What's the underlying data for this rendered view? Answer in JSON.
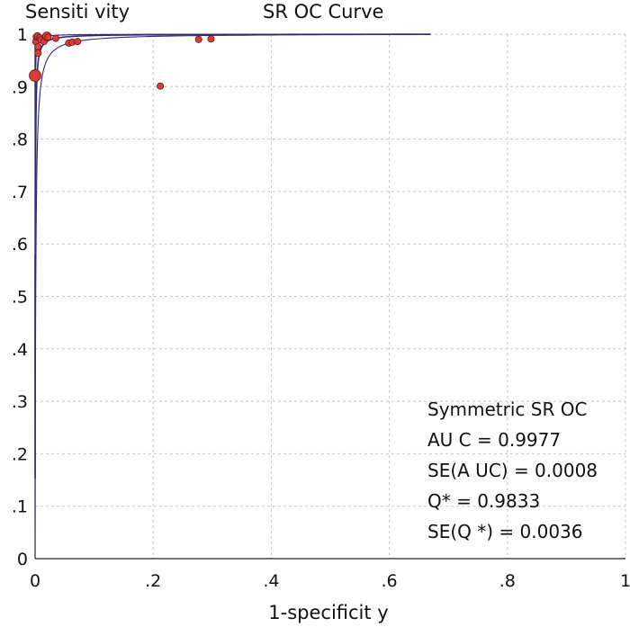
{
  "chart_data": {
    "type": "scatter",
    "title": "SR OC Curve",
    "xlabel": "1-specificit y",
    "ylabel": "Sensiti vity",
    "xlim": [
      0,
      1
    ],
    "ylim": [
      0,
      1
    ],
    "grid": true,
    "x_ticks": [
      {
        "value": 0,
        "label": "0"
      },
      {
        "value": 0.2,
        "label": ".2"
      },
      {
        "value": 0.4,
        "label": ".4"
      },
      {
        "value": 0.6,
        "label": ".6"
      },
      {
        "value": 0.8,
        "label": ".8"
      },
      {
        "value": 1,
        "label": "1"
      }
    ],
    "y_ticks": [
      {
        "value": 0,
        "label": "0"
      },
      {
        "value": 0.1,
        "label": ".1"
      },
      {
        "value": 0.2,
        "label": ".2"
      },
      {
        "value": 0.3,
        "label": ".3"
      },
      {
        "value": 0.4,
        "label": ".4"
      },
      {
        "value": 0.5,
        "label": ".5"
      },
      {
        "value": 0.6,
        "label": ".6"
      },
      {
        "value": 0.7,
        "label": ".7"
      },
      {
        "value": 0.8,
        "label": ".8"
      },
      {
        "value": 0.9,
        "label": ".9"
      },
      {
        "value": 1,
        "label": "1"
      }
    ],
    "series": [
      {
        "marker_color": "#dc3c35",
        "points": [
          {
            "x": 0.0,
            "y": 0.921,
            "weight": 3
          },
          {
            "x": 0.001,
            "y": 0.986,
            "weight": 1
          },
          {
            "x": 0.002,
            "y": 0.995,
            "weight": 1
          },
          {
            "x": 0.004,
            "y": 0.997,
            "weight": 1
          },
          {
            "x": 0.005,
            "y": 0.976,
            "weight": 1
          },
          {
            "x": 0.005,
            "y": 0.964,
            "weight": 1
          },
          {
            "x": 0.008,
            "y": 0.993,
            "weight": 1
          },
          {
            "x": 0.01,
            "y": 0.989,
            "weight": 1
          },
          {
            "x": 0.015,
            "y": 0.986,
            "weight": 1
          },
          {
            "x": 0.02,
            "y": 0.996,
            "weight": 2
          },
          {
            "x": 0.022,
            "y": 0.994,
            "weight": 1
          },
          {
            "x": 0.035,
            "y": 0.992,
            "weight": 1
          },
          {
            "x": 0.057,
            "y": 0.983,
            "weight": 1
          },
          {
            "x": 0.063,
            "y": 0.985,
            "weight": 1
          },
          {
            "x": 0.072,
            "y": 0.986,
            "weight": 1
          },
          {
            "x": 0.212,
            "y": 0.901,
            "weight": 1
          },
          {
            "x": 0.277,
            "y": 0.99,
            "weight": 1
          },
          {
            "x": 0.298,
            "y": 0.991,
            "weight": 1
          }
        ]
      }
    ],
    "curve": {
      "type": "sroc_fit",
      "color": "#2e2a78",
      "Q_star": 0.9833,
      "x_max": 0.67
    },
    "annotations": [
      "Symmetric SR OC",
      "AU C = 0.9977",
      "SE(A UC)  = 0.0008",
      "Q* = 0.9833",
      "SE(Q *) = 0.0036"
    ]
  }
}
